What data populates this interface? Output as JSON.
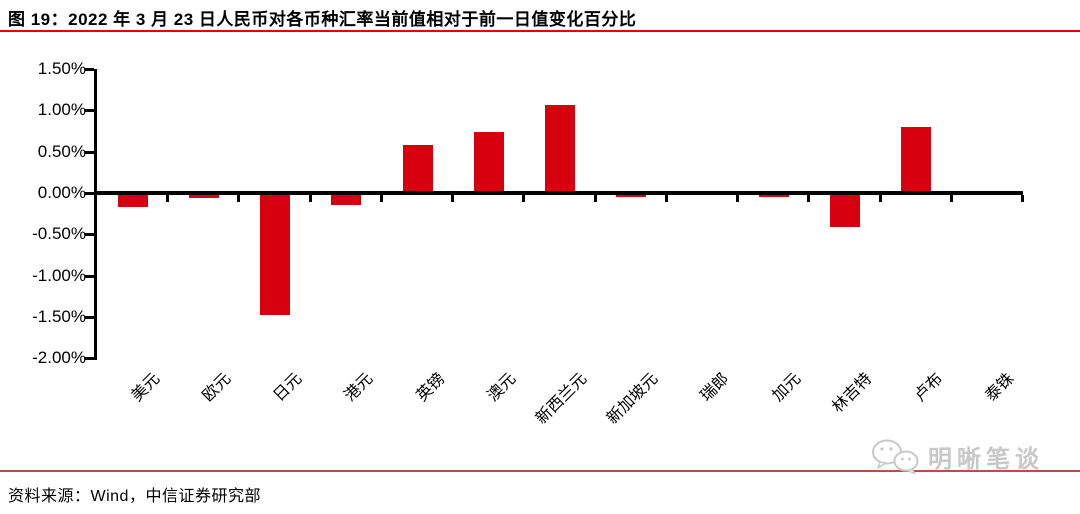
{
  "title": "图 19：2022 年 3 月 23 日人民币对各币种汇率当前值相对于前一日值变化百分比",
  "source": "资料来源：Wind，中信证券研究部",
  "watermark": {
    "label": "明晰笔谈",
    "icon": "wechat-icon"
  },
  "colors": {
    "bar": "#D7000F",
    "title_underline": "#E3000E",
    "footer_rule": "#BE4B48",
    "axis": "#000000",
    "watermark_gray": "#C8C8C8"
  },
  "chart_data": {
    "type": "bar",
    "title": "2022 年 3 月 23 日人民币对各币种汇率当前值相对于前一日值变化百分比",
    "categories": [
      "美元",
      "欧元",
      "日元",
      "港元",
      "英镑",
      "澳元",
      "新西兰元",
      "新加坡元",
      "瑞郎",
      "加元",
      "林吉特",
      "卢布",
      "泰铢"
    ],
    "values": [
      -0.17,
      -0.06,
      -1.48,
      -0.15,
      0.58,
      0.74,
      1.06,
      -0.05,
      0.0,
      -0.05,
      -0.41,
      0.8,
      0.0
    ],
    "unit": "%",
    "xlabel": "",
    "ylabel": "",
    "ylim": [
      -2.0,
      1.5
    ],
    "ytick_step": 0.5,
    "ytick_labels": [
      "1.50%",
      "1.00%",
      "0.50%",
      "0.00%",
      "-0.50%",
      "-1.00%",
      "-1.50%",
      "-2.00%"
    ],
    "grid": false,
    "legend_position": "none",
    "bar_color": "#D7000F"
  }
}
